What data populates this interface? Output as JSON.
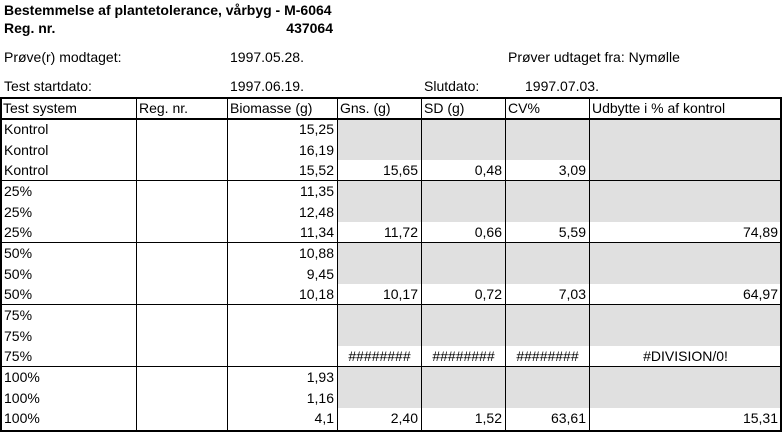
{
  "header": {
    "title": "Bestemmelse af plantetolerance, vårbyg - M-6064",
    "reg_label": "Reg. nr.",
    "reg_value": "437064",
    "received_label": "Prøve(r) modtaget:",
    "received_date": "1997.05.28.",
    "source": "Prøver udtaget fra: Nymølle",
    "start_label": "Test startdato:",
    "start_date": "1997.06.19.",
    "end_label": "Slutdato:",
    "end_date": "1997.07.03."
  },
  "table": {
    "columns": [
      "Test system",
      "Reg. nr.",
      "Biomasse (g)",
      "Gns. (g)",
      "SD (g)",
      "CV%",
      "Udbytte i % af kontrol"
    ],
    "rows": [
      [
        "Kontrol",
        null,
        "15,25",
        null,
        null,
        null,
        null
      ],
      [
        "Kontrol",
        null,
        "16,19",
        null,
        null,
        null,
        null
      ],
      [
        "Kontrol",
        null,
        "15,52",
        "15,65",
        "0,48",
        "3,09",
        null
      ],
      [
        "25%",
        null,
        "11,35",
        null,
        null,
        null,
        null
      ],
      [
        "25%",
        null,
        "12,48",
        null,
        null,
        null,
        null
      ],
      [
        "25%",
        null,
        "11,34",
        "11,72",
        "0,66",
        "5,59",
        "74,89"
      ],
      [
        "50%",
        null,
        "10,88",
        null,
        null,
        null,
        null
      ],
      [
        "50%",
        null,
        "9,45",
        null,
        null,
        null,
        null
      ],
      [
        "50%",
        null,
        "10,18",
        "10,17",
        "0,72",
        "7,03",
        "64,97"
      ],
      [
        "75%",
        null,
        null,
        null,
        null,
        null,
        null
      ],
      [
        "75%",
        null,
        null,
        null,
        null,
        null,
        null
      ],
      [
        "75%",
        null,
        null,
        "########",
        "########",
        "########",
        "#DIVISION/0!"
      ],
      [
        "100%",
        null,
        "1,93",
        null,
        null,
        null,
        null
      ],
      [
        "100%",
        null,
        "1,16",
        null,
        null,
        null,
        null
      ],
      [
        "100%",
        null,
        "4,1",
        "2,40",
        "1,52",
        "63,61",
        "15,31"
      ]
    ]
  }
}
